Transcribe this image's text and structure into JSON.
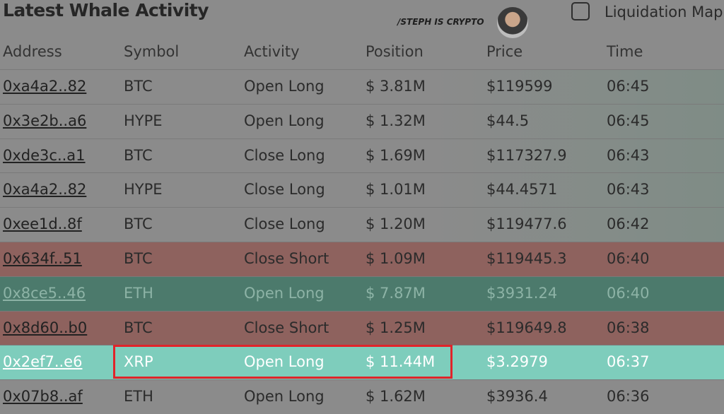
{
  "header": {
    "title": "Latest Whale Activity",
    "watermark": "/STEPH IS CRYPTO",
    "toggle_label": "Liquidation Map"
  },
  "table": {
    "columns": [
      "Address",
      "Symbol",
      "Activity",
      "Position",
      "Price",
      "Time"
    ],
    "rows": [
      [
        "0xa4a2..82",
        "BTC",
        "Open Long",
        "$ 3.81M",
        "$119599",
        "06:45"
      ],
      [
        "0x3e2b..a6",
        "HYPE",
        "Open Long",
        "$ 1.32M",
        "$44.5",
        "06:45"
      ],
      [
        "0xde3c..a1",
        "BTC",
        "Close Long",
        "$ 1.69M",
        "$117327.9",
        "06:43"
      ],
      [
        "0xa4a2..82",
        "HYPE",
        "Close Long",
        "$ 1.01M",
        "$44.4571",
        "06:43"
      ],
      [
        "0xee1d..8f",
        "BTC",
        "Close Long",
        "$ 1.20M",
        "$119477.6",
        "06:42"
      ],
      [
        "0x634f..51",
        "BTC",
        "Close Short",
        "$ 1.09M",
        "$119445.3",
        "06:40"
      ],
      [
        "0x8ce5..46",
        "ETH",
        "Open Long",
        "$ 7.87M",
        "$3931.24",
        "06:40"
      ],
      [
        "0x8d60..b0",
        "BTC",
        "Close Short",
        "$ 1.25M",
        "$119649.8",
        "06:38"
      ],
      [
        "0x2ef7..e6",
        "XRP",
        "Open Long",
        "$ 11.44M",
        "$3.2979",
        "06:37"
      ],
      [
        "0x07b8..af",
        "ETH",
        "Open Long",
        "$ 1.62M",
        "$3936.4",
        "06:36"
      ]
    ]
  }
}
